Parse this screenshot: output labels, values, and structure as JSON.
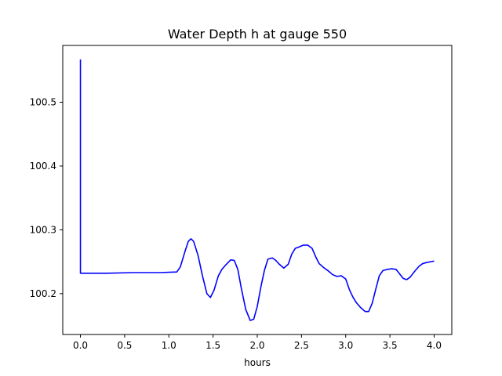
{
  "chart_data": {
    "type": "line",
    "title": "Water Depth h at gauge 550",
    "xlabel": "hours",
    "ylabel": "",
    "xlim": [
      -0.2,
      4.2
    ],
    "ylim": [
      100.136,
      100.589
    ],
    "xticks": [
      0.0,
      0.5,
      1.0,
      1.5,
      2.0,
      2.5,
      3.0,
      3.5,
      4.0
    ],
    "xtick_labels": [
      "0.0",
      "0.5",
      "1.0",
      "1.5",
      "2.0",
      "2.5",
      "3.0",
      "3.5",
      "4.0"
    ],
    "yticks": [
      100.2,
      100.3,
      100.4,
      100.5
    ],
    "ytick_labels": [
      "100.2",
      "100.3",
      "100.4",
      "100.5"
    ],
    "grid": false,
    "legend": "none",
    "series": [
      {
        "color": "#0000ff",
        "x": [
          0.0,
          0.0,
          0.05,
          0.3,
          0.6,
          0.9,
          1.09,
          1.13,
          1.18,
          1.22,
          1.25,
          1.28,
          1.33,
          1.38,
          1.43,
          1.47,
          1.51,
          1.56,
          1.6,
          1.65,
          1.7,
          1.74,
          1.78,
          1.82,
          1.87,
          1.92,
          1.96,
          2.0,
          2.04,
          2.08,
          2.12,
          2.17,
          2.21,
          2.25,
          2.3,
          2.35,
          2.39,
          2.43,
          2.47,
          2.52,
          2.57,
          2.62,
          2.66,
          2.7,
          2.75,
          2.8,
          2.85,
          2.9,
          2.95,
          3.0,
          3.04,
          3.08,
          3.12,
          3.17,
          3.22,
          3.26,
          3.3,
          3.34,
          3.38,
          3.42,
          3.47,
          3.52,
          3.57,
          3.61,
          3.65,
          3.69,
          3.73,
          3.78,
          3.83,
          3.87,
          3.92,
          3.96,
          4.0
        ],
        "y": [
          100.567,
          100.232,
          100.232,
          100.232,
          100.233,
          100.233,
          100.234,
          100.242,
          100.265,
          100.282,
          100.286,
          100.282,
          100.26,
          100.228,
          100.2,
          100.194,
          100.205,
          100.228,
          100.238,
          100.246,
          100.253,
          100.252,
          100.238,
          100.208,
          100.175,
          100.158,
          100.16,
          100.18,
          100.21,
          100.236,
          100.254,
          100.256,
          100.252,
          100.246,
          100.24,
          100.246,
          100.262,
          100.271,
          100.273,
          100.276,
          100.276,
          100.271,
          100.258,
          100.247,
          100.241,
          100.236,
          100.23,
          100.227,
          100.228,
          100.223,
          100.207,
          100.195,
          100.186,
          100.178,
          100.172,
          100.172,
          100.185,
          100.207,
          100.228,
          100.236,
          100.238,
          100.239,
          100.238,
          100.231,
          100.224,
          100.222,
          100.226,
          100.235,
          100.243,
          100.247,
          100.249,
          100.25,
          100.251
        ]
      }
    ]
  }
}
